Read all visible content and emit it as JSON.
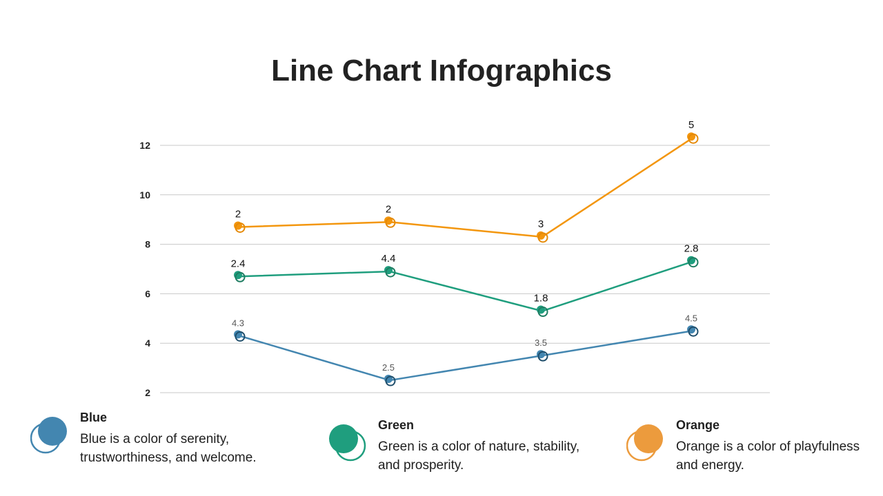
{
  "title": "Line Chart Infographics",
  "chart_data": {
    "type": "line",
    "categories": [
      "",
      "",
      "",
      ""
    ],
    "ylim": [
      2,
      12
    ],
    "yticks": [
      2,
      4,
      6,
      8,
      10,
      12
    ],
    "grid": true,
    "series": [
      {
        "name": "Blue",
        "color": "#4386b0",
        "outline": "#1f4e6b",
        "y": [
          4.3,
          2.5,
          3.5,
          4.5
        ],
        "labels": [
          "4.3",
          "2.5",
          "3.5",
          "4.5"
        ]
      },
      {
        "name": "Green",
        "color": "#1f9e7e",
        "outline": "#1f7d62",
        "y": [
          6.7,
          6.9,
          5.3,
          7.3
        ],
        "labels": [
          "2.4",
          "4.4",
          "1.8",
          "2.8"
        ]
      },
      {
        "name": "Orange",
        "color": "#f3960d",
        "outline": "#e58a08",
        "y": [
          8.7,
          8.9,
          8.3,
          12.3
        ],
        "labels": [
          "2",
          "2",
          "3",
          "5"
        ]
      }
    ]
  },
  "legend": [
    {
      "name": "Blue",
      "description": "Blue is a color of serenity, trustworthiness, and welcome.",
      "color": "#4386b0",
      "outline": "#4386b0"
    },
    {
      "name": "Green",
      "description": "Green is a color of nature, stability, and prosperity.",
      "color": "#1f9e7e",
      "outline": "#1f9e7e"
    },
    {
      "name": "Orange",
      "description": "Orange is a color of playfulness and energy.",
      "color": "#ec9b3d",
      "outline": "#ec9b3d"
    }
  ]
}
